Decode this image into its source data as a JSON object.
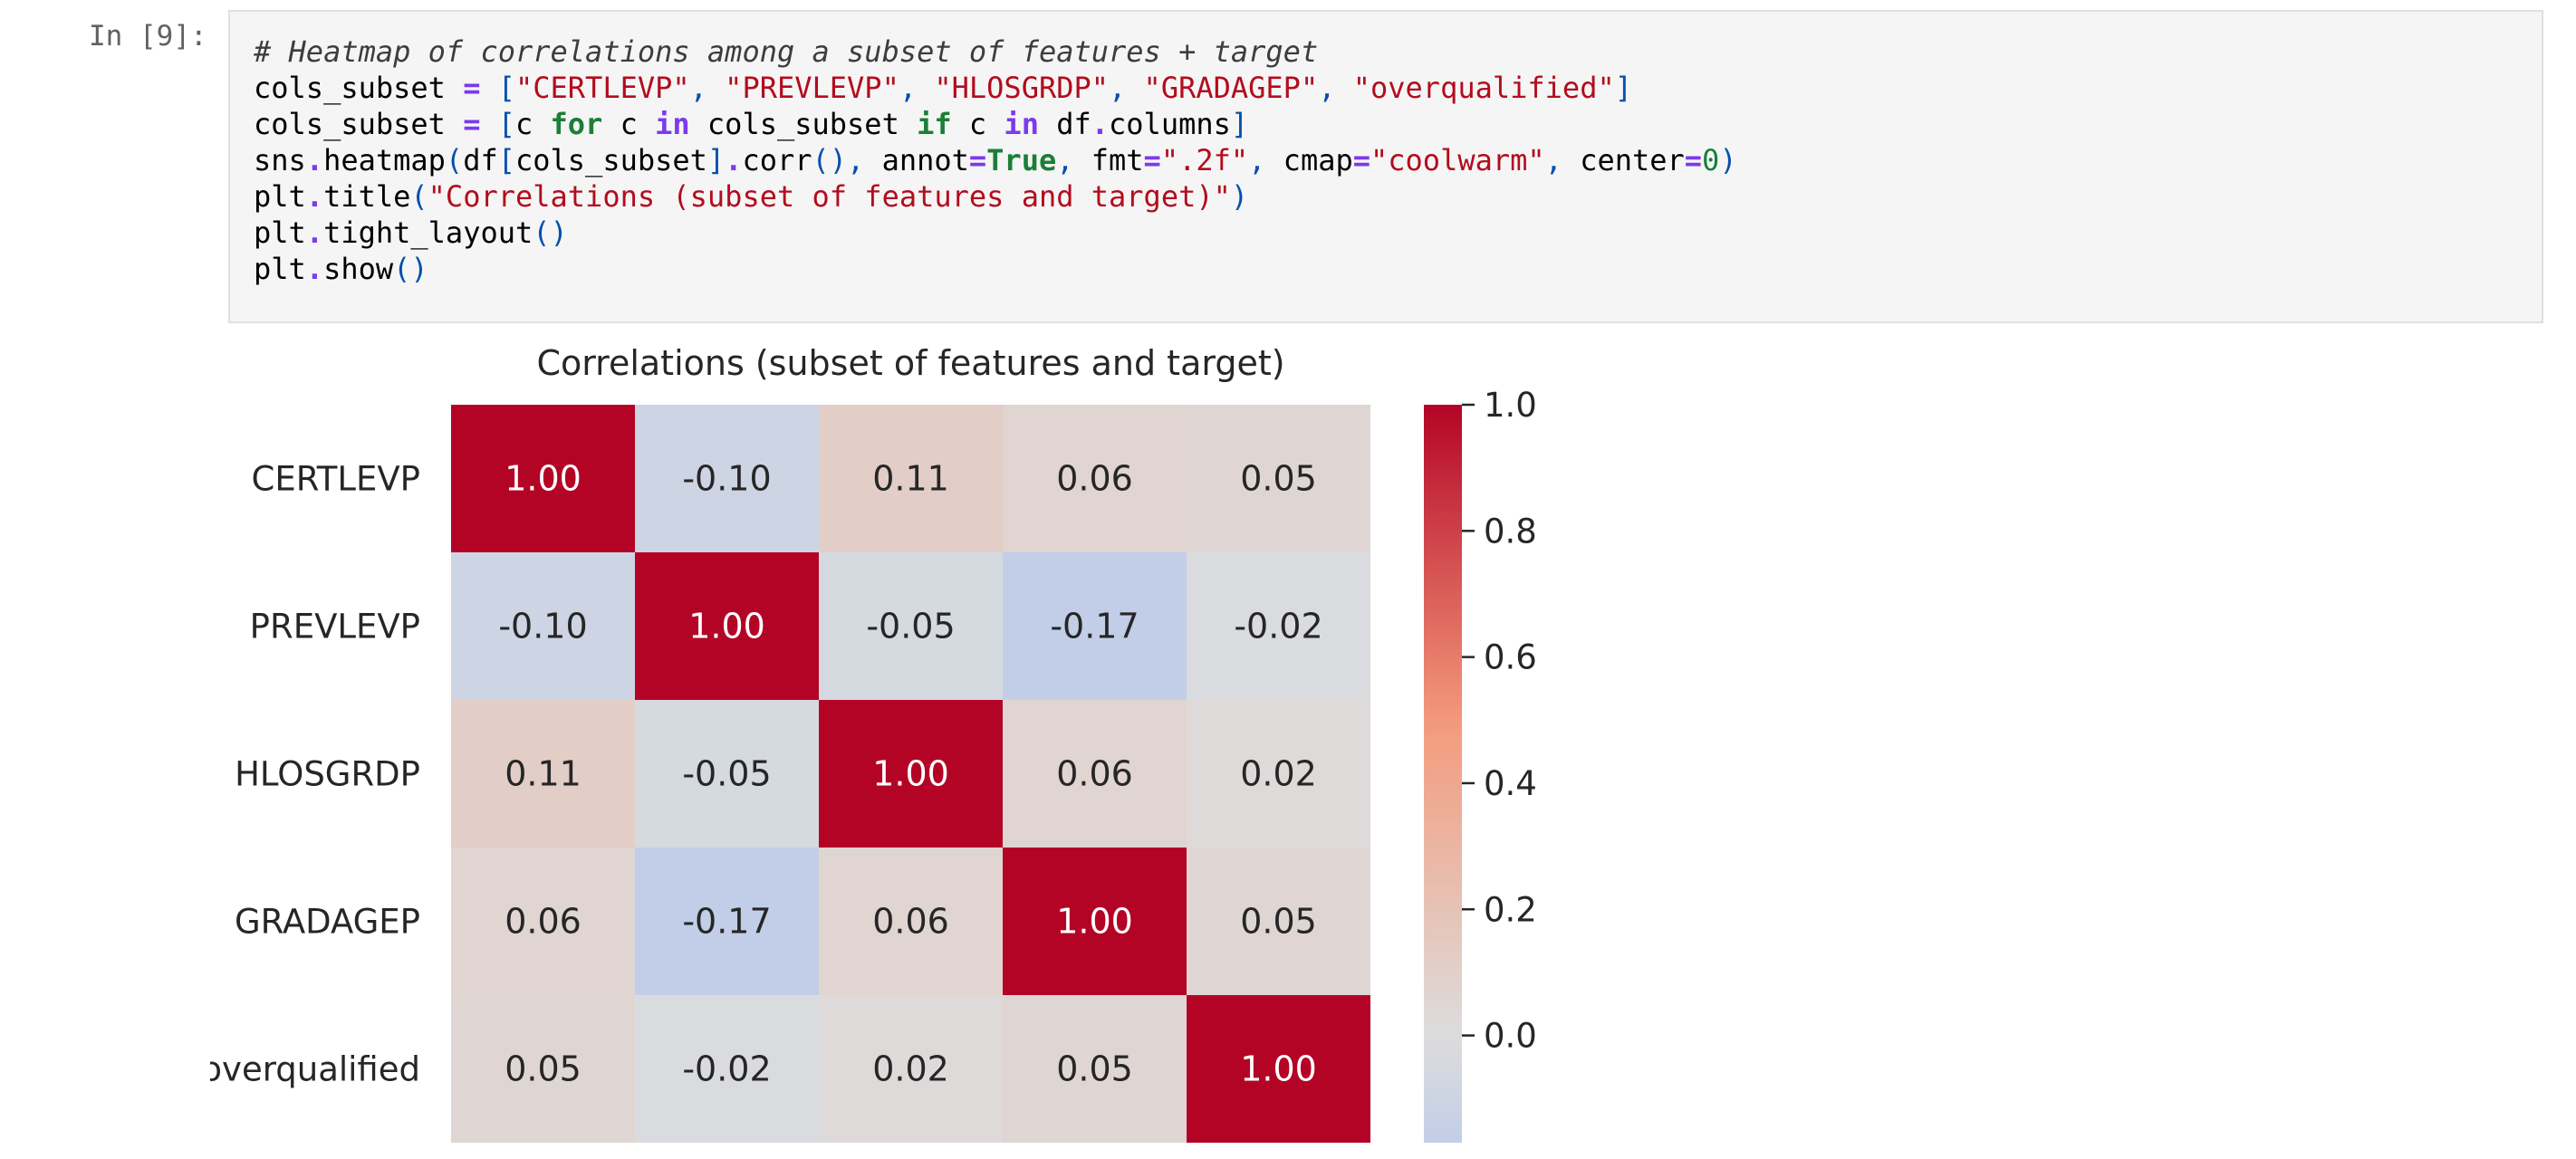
{
  "cell": {
    "prompt": "In [9]:",
    "code_lines": [
      [
        {
          "t": "# Heatmap of correlations among a subset of features + target",
          "c": "comment"
        }
      ],
      [
        {
          "t": "cols_subset ",
          "c": ""
        },
        {
          "t": "=",
          "c": "op"
        },
        {
          "t": " ",
          "c": ""
        },
        {
          "t": "[",
          "c": "bracket"
        },
        {
          "t": "\"CERTLEVP\"",
          "c": "str"
        },
        {
          "t": ", ",
          "c": "bracket"
        },
        {
          "t": "\"PREVLEVP\"",
          "c": "str"
        },
        {
          "t": ", ",
          "c": "bracket"
        },
        {
          "t": "\"HLOSGRDP\"",
          "c": "str"
        },
        {
          "t": ", ",
          "c": "bracket"
        },
        {
          "t": "\"GRADAGEP\"",
          "c": "str"
        },
        {
          "t": ", ",
          "c": "bracket"
        },
        {
          "t": "\"overqualified\"",
          "c": "str"
        },
        {
          "t": "]",
          "c": "bracket"
        }
      ],
      [
        {
          "t": "cols_subset ",
          "c": ""
        },
        {
          "t": "=",
          "c": "op"
        },
        {
          "t": " ",
          "c": ""
        },
        {
          "t": "[",
          "c": "bracket"
        },
        {
          "t": "c ",
          "c": ""
        },
        {
          "t": "for",
          "c": "kw"
        },
        {
          "t": " c ",
          "c": ""
        },
        {
          "t": "in",
          "c": "kw2"
        },
        {
          "t": " cols_subset ",
          "c": ""
        },
        {
          "t": "if",
          "c": "kw"
        },
        {
          "t": " c ",
          "c": ""
        },
        {
          "t": "in",
          "c": "kw2"
        },
        {
          "t": " df",
          "c": ""
        },
        {
          "t": ".",
          "c": "op"
        },
        {
          "t": "columns",
          "c": ""
        },
        {
          "t": "]",
          "c": "bracket"
        }
      ],
      [
        {
          "t": "sns",
          "c": ""
        },
        {
          "t": ".",
          "c": "op"
        },
        {
          "t": "heatmap",
          "c": ""
        },
        {
          "t": "(",
          "c": "bracket"
        },
        {
          "t": "df",
          "c": ""
        },
        {
          "t": "[",
          "c": "bracket"
        },
        {
          "t": "cols_subset",
          "c": ""
        },
        {
          "t": "]",
          "c": "bracket"
        },
        {
          "t": ".",
          "c": "op"
        },
        {
          "t": "corr",
          "c": ""
        },
        {
          "t": "()",
          "c": "bracket"
        },
        {
          "t": ", ",
          "c": "bracket"
        },
        {
          "t": "annot",
          "c": ""
        },
        {
          "t": "=",
          "c": "op"
        },
        {
          "t": "True",
          "c": "kw"
        },
        {
          "t": ", ",
          "c": "bracket"
        },
        {
          "t": "fmt",
          "c": ""
        },
        {
          "t": "=",
          "c": "op"
        },
        {
          "t": "\".2f\"",
          "c": "str"
        },
        {
          "t": ", ",
          "c": "bracket"
        },
        {
          "t": "cmap",
          "c": ""
        },
        {
          "t": "=",
          "c": "op"
        },
        {
          "t": "\"coolwarm\"",
          "c": "str"
        },
        {
          "t": ", ",
          "c": "bracket"
        },
        {
          "t": "center",
          "c": ""
        },
        {
          "t": "=",
          "c": "op"
        },
        {
          "t": "0",
          "c": "num"
        },
        {
          "t": ")",
          "c": "bracket"
        }
      ],
      [
        {
          "t": "plt",
          "c": ""
        },
        {
          "t": ".",
          "c": "op"
        },
        {
          "t": "title",
          "c": ""
        },
        {
          "t": "(",
          "c": "bracket"
        },
        {
          "t": "\"Correlations (subset of features and target)\"",
          "c": "str"
        },
        {
          "t": ")",
          "c": "bracket"
        }
      ],
      [
        {
          "t": "plt",
          "c": ""
        },
        {
          "t": ".",
          "c": "op"
        },
        {
          "t": "tight_layout",
          "c": ""
        },
        {
          "t": "()",
          "c": "bracket"
        }
      ],
      [
        {
          "t": "plt",
          "c": ""
        },
        {
          "t": ".",
          "c": "op"
        },
        {
          "t": "show",
          "c": ""
        },
        {
          "t": "()",
          "c": "bracket"
        }
      ]
    ]
  },
  "chart_data": {
    "type": "heatmap",
    "title": "Correlations (subset of features and target)",
    "rows": [
      "CERTLEVP",
      "PREVLEVP",
      "HLOSGRDP",
      "GRADAGEP",
      "overqualified"
    ],
    "columns": [
      "",
      "",
      "",
      "",
      ""
    ],
    "values": [
      [
        1.0,
        -0.1,
        0.11,
        0.06,
        0.05
      ],
      [
        -0.1,
        1.0,
        -0.05,
        -0.17,
        -0.02
      ],
      [
        0.11,
        -0.05,
        1.0,
        0.06,
        0.02
      ],
      [
        0.06,
        -0.17,
        0.06,
        1.0,
        0.05
      ],
      [
        0.05,
        -0.02,
        0.02,
        0.05,
        1.0
      ]
    ],
    "value_format": ".2f",
    "colormap": "coolwarm",
    "center": 0,
    "colorbar": {
      "range": [
        -0.17,
        1.0
      ],
      "ticks": [
        0.0,
        0.2,
        0.4,
        0.6,
        0.8,
        1.0
      ],
      "tick_labels": [
        "0.0",
        "0.2",
        "0.4",
        "0.6",
        "0.8",
        "1.0"
      ]
    }
  },
  "colors": {
    "cell_background": "#f5f5f5",
    "cell_border": "#e0e0e0",
    "prompt_text": "#616161"
  }
}
